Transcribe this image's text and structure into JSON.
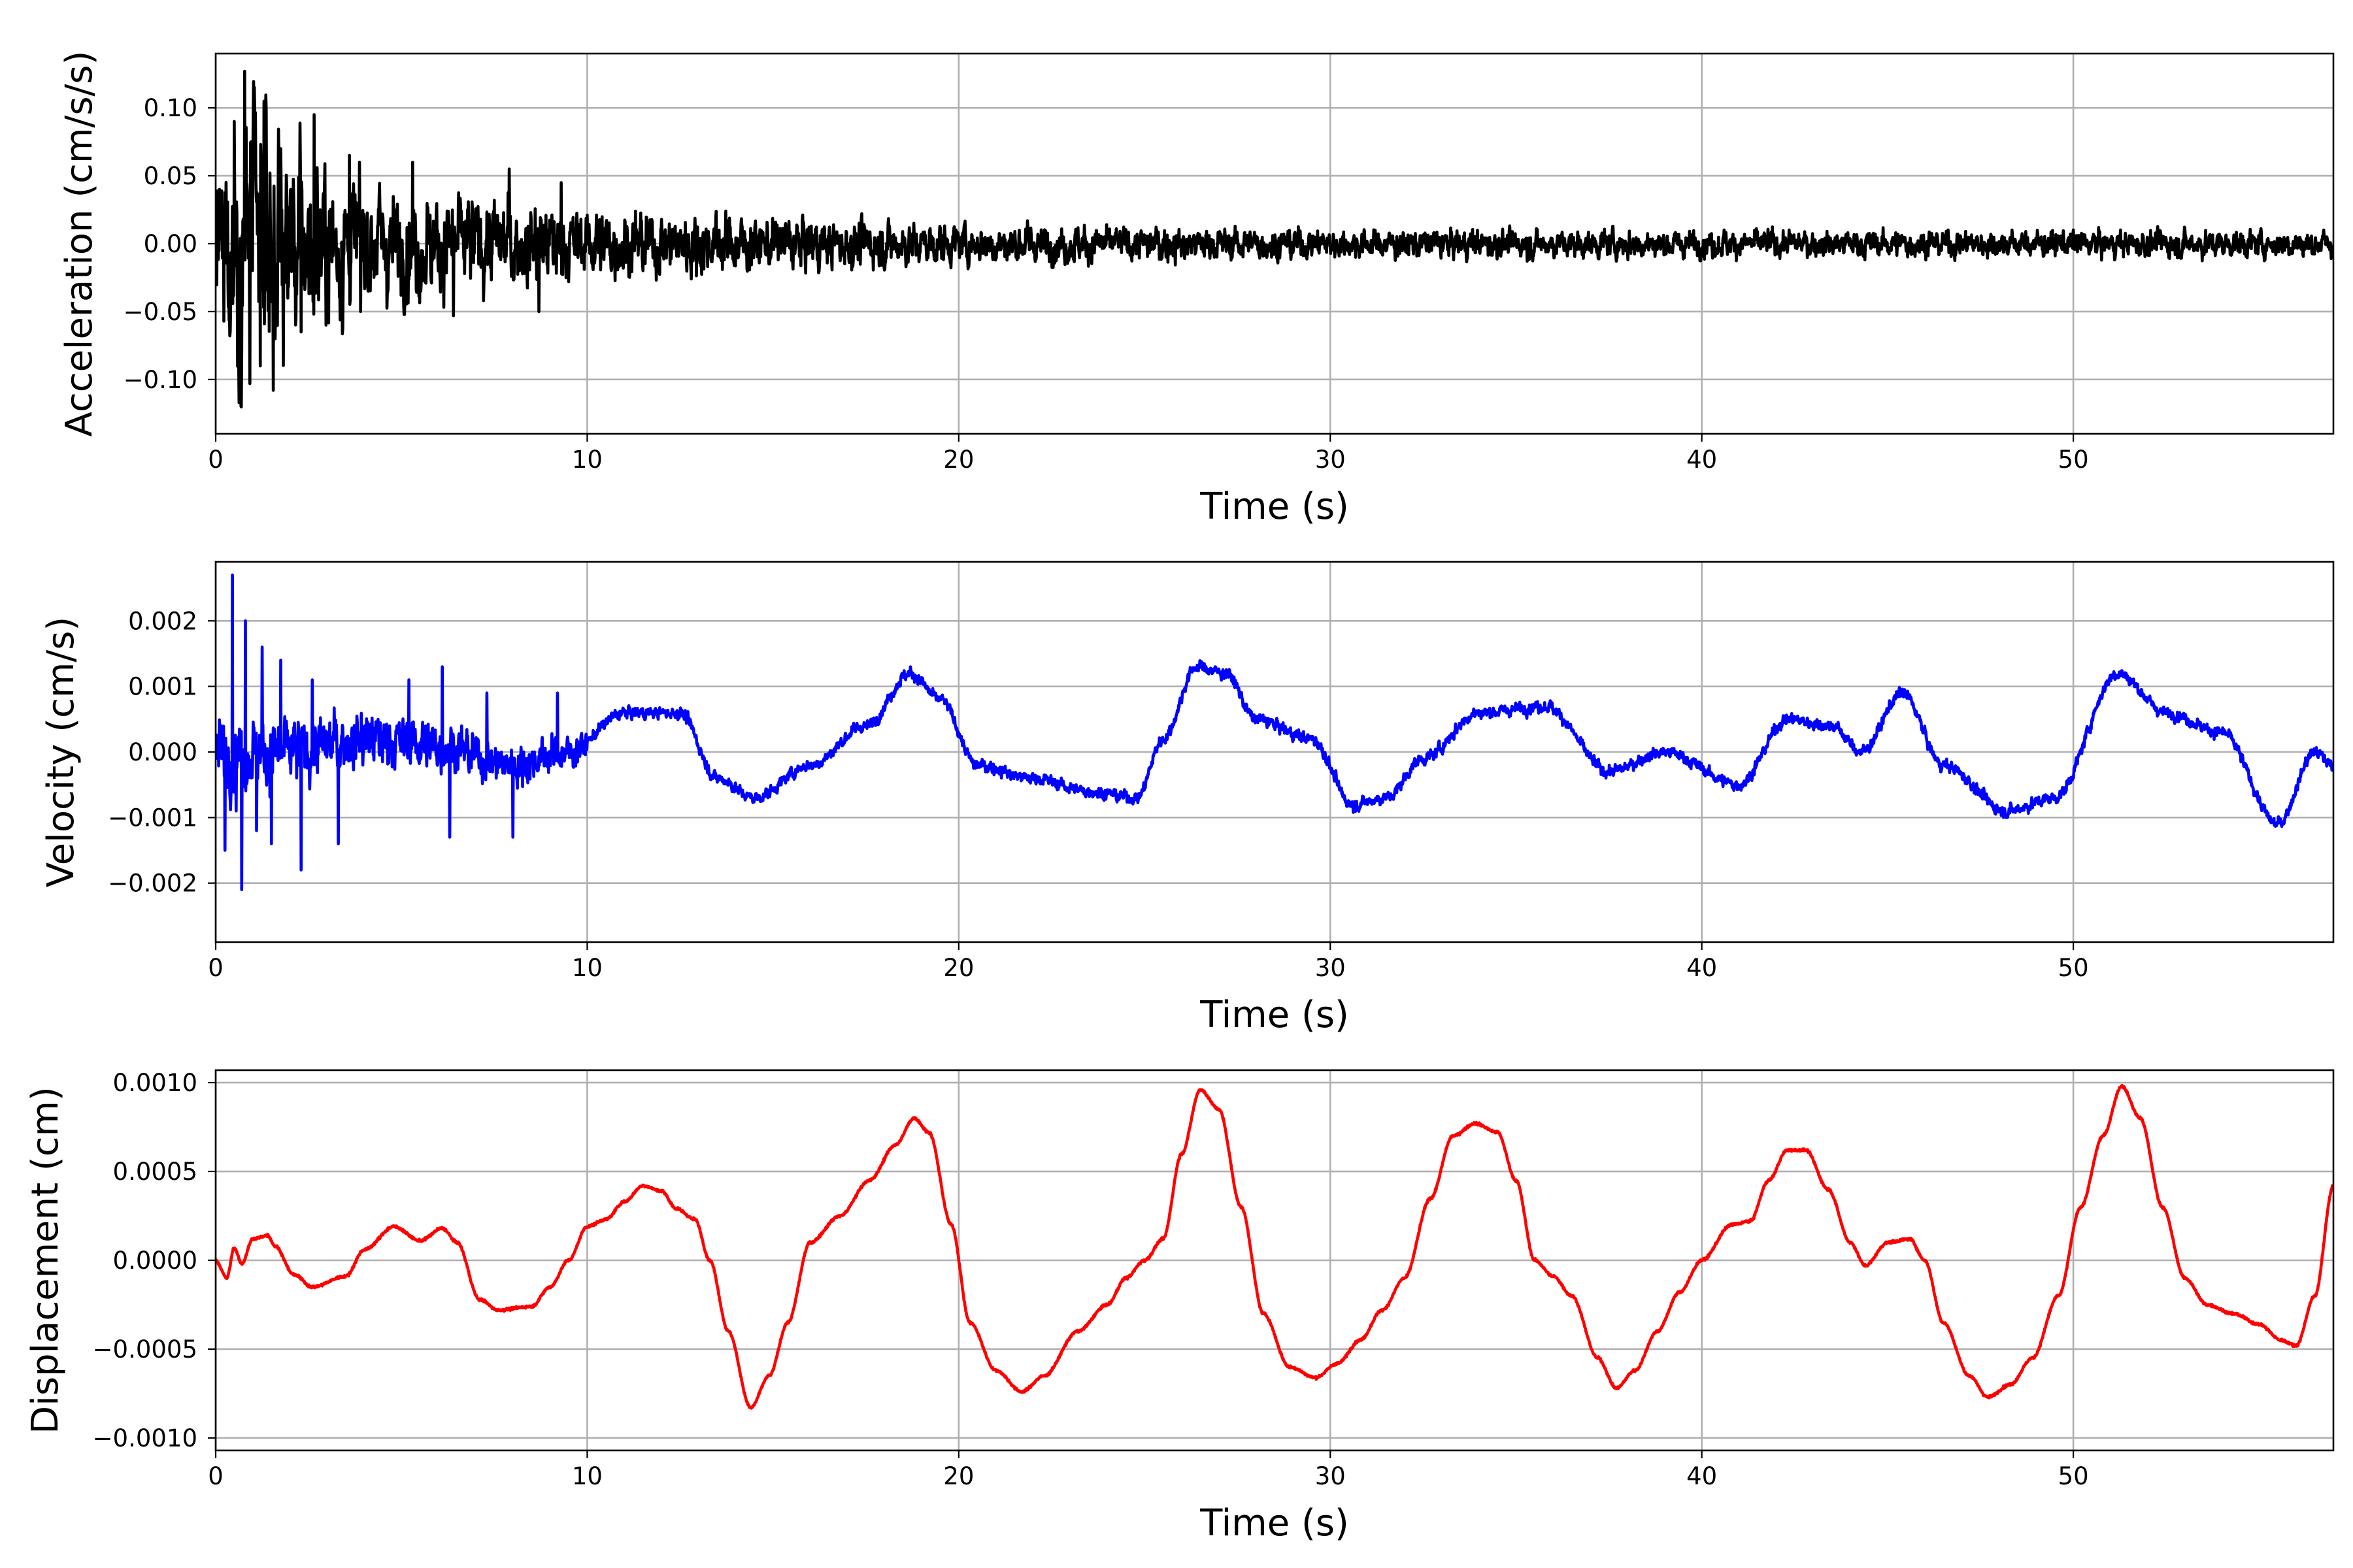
{
  "chart_data": [
    {
      "type": "line",
      "name": "acceleration-panel",
      "xlabel": "Time (s)",
      "ylabel": "Acceleration (cm/s/s)",
      "xlim": [
        0,
        57
      ],
      "ylim": [
        -0.14,
        0.14
      ],
      "xticks": [
        0,
        10,
        20,
        30,
        40,
        50
      ],
      "yticks": [
        -0.1,
        -0.05,
        0.0,
        0.05,
        0.1
      ],
      "ytick_labels": [
        "−0.10",
        "−0.05",
        "0.00",
        "0.05",
        "0.10"
      ],
      "grid": true,
      "color": "#000000",
      "series": [
        {
          "envelope": [
            {
              "t": 0,
              "amp": 0.06
            },
            {
              "t": 0.4,
              "amp": 0.1
            },
            {
              "t": 0.8,
              "amp": 0.12
            },
            {
              "t": 1.5,
              "amp": 0.1
            },
            {
              "t": 2.5,
              "amp": 0.08
            },
            {
              "t": 4,
              "amp": 0.055
            },
            {
              "t": 6,
              "amp": 0.045
            },
            {
              "t": 8,
              "amp": 0.04
            },
            {
              "t": 10,
              "amp": 0.03
            },
            {
              "t": 14,
              "amp": 0.025
            },
            {
              "t": 20,
              "amp": 0.018
            },
            {
              "t": 30,
              "amp": 0.013
            },
            {
              "t": 40,
              "amp": 0.012
            },
            {
              "t": 50,
              "amp": 0.012
            },
            {
              "t": 57,
              "amp": 0.012
            }
          ],
          "peaks": [
            {
              "t": 0.1,
              "v": 0.04
            },
            {
              "t": 0.22,
              "v": -0.057
            },
            {
              "t": 0.5,
              "v": 0.09
            },
            {
              "t": 0.62,
              "v": -0.09
            },
            {
              "t": 0.78,
              "v": 0.127
            },
            {
              "t": 0.92,
              "v": -0.103
            },
            {
              "t": 1.05,
              "v": 0.1
            },
            {
              "t": 1.2,
              "v": -0.09
            },
            {
              "t": 1.3,
              "v": 0.105
            },
            {
              "t": 1.55,
              "v": -0.108
            },
            {
              "t": 1.75,
              "v": 0.07
            },
            {
              "t": 2.3,
              "v": -0.065
            },
            {
              "t": 2.65,
              "v": 0.095
            },
            {
              "t": 3.6,
              "v": 0.065
            },
            {
              "t": 3.9,
              "v": -0.05
            },
            {
              "t": 5.3,
              "v": 0.06
            },
            {
              "t": 6.4,
              "v": -0.053
            },
            {
              "t": 7.9,
              "v": 0.055
            },
            {
              "t": 8.7,
              "v": -0.05
            },
            {
              "t": 9.3,
              "v": 0.045
            }
          ]
        }
      ]
    },
    {
      "type": "line",
      "name": "velocity-panel",
      "xlabel": "Time (s)",
      "ylabel": "Velocity (cm/s)",
      "xlim": [
        0,
        57
      ],
      "ylim": [
        -0.0029,
        0.0029
      ],
      "xticks": [
        0,
        10,
        20,
        30,
        40,
        50
      ],
      "yticks": [
        -0.002,
        -0.001,
        0.0,
        0.001,
        0.002
      ],
      "ytick_labels": [
        "−0.002",
        "−0.001",
        "0.000",
        "0.001",
        "0.002"
      ],
      "grid": true,
      "color": "#0000ff",
      "series": [
        {
          "trend": [
            {
              "t": 0,
              "v": 0.0
            },
            {
              "t": 2,
              "v": 0.0
            },
            {
              "t": 4,
              "v": 0.0002
            },
            {
              "t": 6,
              "v": 0.0001
            },
            {
              "t": 8,
              "v": -0.0002
            },
            {
              "t": 9.5,
              "v": 0.0
            },
            {
              "t": 11,
              "v": 0.0006
            },
            {
              "t": 12.5,
              "v": 0.0006
            },
            {
              "t": 13.5,
              "v": -0.0004
            },
            {
              "t": 14.5,
              "v": -0.0007
            },
            {
              "t": 16,
              "v": -0.0002
            },
            {
              "t": 17.5,
              "v": 0.0004
            },
            {
              "t": 18.7,
              "v": 0.0012
            },
            {
              "t": 19.5,
              "v": 0.0008
            },
            {
              "t": 20.5,
              "v": -0.0002
            },
            {
              "t": 22,
              "v": -0.0004
            },
            {
              "t": 23.5,
              "v": -0.0006
            },
            {
              "t": 24.8,
              "v": -0.0007
            },
            {
              "t": 25.5,
              "v": 0.0002
            },
            {
              "t": 26.4,
              "v": 0.0013
            },
            {
              "t": 27.2,
              "v": 0.0012
            },
            {
              "t": 28,
              "v": 0.0005
            },
            {
              "t": 29.5,
              "v": 0.0002
            },
            {
              "t": 30.6,
              "v": -0.0008
            },
            {
              "t": 31.5,
              "v": -0.0007
            },
            {
              "t": 32.5,
              "v": -0.0001
            },
            {
              "t": 34,
              "v": 0.0006
            },
            {
              "t": 35.8,
              "v": 0.0007
            },
            {
              "t": 37.5,
              "v": -0.0003
            },
            {
              "t": 39,
              "v": 0.0
            },
            {
              "t": 41,
              "v": -0.0005
            },
            {
              "t": 42.3,
              "v": 0.0005
            },
            {
              "t": 43.5,
              "v": 0.0004
            },
            {
              "t": 44.3,
              "v": 0.0
            },
            {
              "t": 45.4,
              "v": 0.0009
            },
            {
              "t": 46.5,
              "v": -0.0002
            },
            {
              "t": 48.2,
              "v": -0.0009
            },
            {
              "t": 49.5,
              "v": -0.0007
            },
            {
              "t": 51.2,
              "v": 0.0012
            },
            {
              "t": 52.5,
              "v": 0.0006
            },
            {
              "t": 54,
              "v": 0.0003
            },
            {
              "t": 55.5,
              "v": -0.0011
            },
            {
              "t": 56.5,
              "v": 0.0
            },
            {
              "t": 57,
              "v": -0.0002
            }
          ],
          "peaks": [
            {
              "t": 0.15,
              "v": 0.0004
            },
            {
              "t": 0.25,
              "v": -0.0015
            },
            {
              "t": 0.45,
              "v": 0.0027
            },
            {
              "t": 0.55,
              "v": -0.0009
            },
            {
              "t": 0.7,
              "v": -0.0021
            },
            {
              "t": 0.8,
              "v": 0.002
            },
            {
              "t": 1.1,
              "v": -0.0012
            },
            {
              "t": 1.25,
              "v": 0.0016
            },
            {
              "t": 1.5,
              "v": -0.0014
            },
            {
              "t": 1.75,
              "v": 0.0014
            },
            {
              "t": 2.3,
              "v": -0.0018
            },
            {
              "t": 2.6,
              "v": 0.0011
            },
            {
              "t": 3.3,
              "v": -0.0014
            },
            {
              "t": 5.2,
              "v": 0.0011
            },
            {
              "t": 6.1,
              "v": 0.0013
            },
            {
              "t": 6.3,
              "v": -0.0013
            },
            {
              "t": 7.3,
              "v": 0.0009
            },
            {
              "t": 8.0,
              "v": -0.0013
            },
            {
              "t": 9.2,
              "v": 0.0009
            }
          ]
        }
      ]
    },
    {
      "type": "line",
      "name": "displacement-panel",
      "xlabel": "Time (s)",
      "ylabel": "Displacement (cm)",
      "xlim": [
        0,
        57
      ],
      "ylim": [
        -0.00107,
        0.00107
      ],
      "xticks": [
        0,
        10,
        20,
        30,
        40,
        50
      ],
      "yticks": [
        -0.001,
        -0.0005,
        0.0,
        0.0005,
        0.001
      ],
      "ytick_labels": [
        "−0.0010",
        "−0.0005",
        "0.0000",
        "0.0005",
        "0.0010"
      ],
      "grid": true,
      "color": "#ff0000",
      "series": [
        {
          "points": [
            {
              "t": 0,
              "v": 0.0
            },
            {
              "t": 0.3,
              "v": -0.0001
            },
            {
              "t": 0.5,
              "v": 7e-05
            },
            {
              "t": 0.7,
              "v": -2e-05
            },
            {
              "t": 1.0,
              "v": 0.00012
            },
            {
              "t": 1.4,
              "v": 0.00014
            },
            {
              "t": 1.6,
              "v": 8e-05
            },
            {
              "t": 2.1,
              "v": -8e-05
            },
            {
              "t": 2.6,
              "v": -0.00015
            },
            {
              "t": 3.5,
              "v": -9e-05
            },
            {
              "t": 4.0,
              "v": 6e-05
            },
            {
              "t": 4.8,
              "v": 0.00019
            },
            {
              "t": 5.5,
              "v": 0.00011
            },
            {
              "t": 6.1,
              "v": 0.00018
            },
            {
              "t": 6.5,
              "v": 0.0001
            },
            {
              "t": 7.1,
              "v": -0.00022
            },
            {
              "t": 7.6,
              "v": -0.00028
            },
            {
              "t": 8.5,
              "v": -0.00026
            },
            {
              "t": 9.0,
              "v": -0.00015
            },
            {
              "t": 9.5,
              "v": 0.0
            },
            {
              "t": 10.0,
              "v": 0.00019
            },
            {
              "t": 10.5,
              "v": 0.00023
            },
            {
              "t": 11.0,
              "v": 0.00033
            },
            {
              "t": 11.5,
              "v": 0.00042
            },
            {
              "t": 12.0,
              "v": 0.00039
            },
            {
              "t": 12.4,
              "v": 0.00029
            },
            {
              "t": 12.9,
              "v": 0.00023
            },
            {
              "t": 13.3,
              "v": 0.0
            },
            {
              "t": 13.8,
              "v": -0.0004
            },
            {
              "t": 14.4,
              "v": -0.00083
            },
            {
              "t": 14.9,
              "v": -0.00065
            },
            {
              "t": 15.4,
              "v": -0.00035
            },
            {
              "t": 16.0,
              "v": 0.0001
            },
            {
              "t": 16.8,
              "v": 0.00025
            },
            {
              "t": 17.6,
              "v": 0.00045
            },
            {
              "t": 18.3,
              "v": 0.00065
            },
            {
              "t": 18.8,
              "v": 0.0008
            },
            {
              "t": 19.2,
              "v": 0.00072
            },
            {
              "t": 19.8,
              "v": 0.0002
            },
            {
              "t": 20.3,
              "v": -0.00035
            },
            {
              "t": 21.0,
              "v": -0.00062
            },
            {
              "t": 21.7,
              "v": -0.00074
            },
            {
              "t": 22.3,
              "v": -0.00065
            },
            {
              "t": 23.2,
              "v": -0.0004
            },
            {
              "t": 24.0,
              "v": -0.00025
            },
            {
              "t": 24.5,
              "v": -0.0001
            },
            {
              "t": 25.0,
              "v": 0.0
            },
            {
              "t": 25.5,
              "v": 0.00012
            },
            {
              "t": 26.0,
              "v": 0.0006
            },
            {
              "t": 26.5,
              "v": 0.00096
            },
            {
              "t": 27.0,
              "v": 0.00085
            },
            {
              "t": 27.6,
              "v": 0.0003
            },
            {
              "t": 28.2,
              "v": -0.0003
            },
            {
              "t": 28.9,
              "v": -0.0006
            },
            {
              "t": 29.6,
              "v": -0.00066
            },
            {
              "t": 30.2,
              "v": -0.00058
            },
            {
              "t": 30.8,
              "v": -0.00045
            },
            {
              "t": 31.4,
              "v": -0.00028
            },
            {
              "t": 32.0,
              "v": -0.0001
            },
            {
              "t": 32.7,
              "v": 0.00035
            },
            {
              "t": 33.3,
              "v": 0.0007
            },
            {
              "t": 33.9,
              "v": 0.00077
            },
            {
              "t": 34.5,
              "v": 0.00072
            },
            {
              "t": 35.0,
              "v": 0.00045
            },
            {
              "t": 35.5,
              "v": 0.0
            },
            {
              "t": 36.0,
              "v": -9e-05
            },
            {
              "t": 36.5,
              "v": -0.0002
            },
            {
              "t": 37.2,
              "v": -0.00055
            },
            {
              "t": 37.7,
              "v": -0.00072
            },
            {
              "t": 38.2,
              "v": -0.00062
            },
            {
              "t": 38.8,
              "v": -0.0004
            },
            {
              "t": 39.4,
              "v": -0.00018
            },
            {
              "t": 40.0,
              "v": 0.0
            },
            {
              "t": 40.8,
              "v": 0.0002
            },
            {
              "t": 41.3,
              "v": 0.00022
            },
            {
              "t": 41.8,
              "v": 0.00045
            },
            {
              "t": 42.3,
              "v": 0.00062
            },
            {
              "t": 42.8,
              "v": 0.00062
            },
            {
              "t": 43.4,
              "v": 0.0004
            },
            {
              "t": 44.0,
              "v": 0.0001
            },
            {
              "t": 44.4,
              "v": -3e-05
            },
            {
              "t": 45.0,
              "v": 0.0001
            },
            {
              "t": 45.6,
              "v": 0.00012
            },
            {
              "t": 46.0,
              "v": 0.0
            },
            {
              "t": 46.5,
              "v": -0.00035
            },
            {
              "t": 47.2,
              "v": -0.00065
            },
            {
              "t": 47.7,
              "v": -0.00077
            },
            {
              "t": 48.3,
              "v": -0.0007
            },
            {
              "t": 48.9,
              "v": -0.00055
            },
            {
              "t": 49.6,
              "v": -0.0002
            },
            {
              "t": 50.2,
              "v": 0.0003
            },
            {
              "t": 50.8,
              "v": 0.0007
            },
            {
              "t": 51.3,
              "v": 0.00098
            },
            {
              "t": 51.8,
              "v": 0.0008
            },
            {
              "t": 52.4,
              "v": 0.0003
            },
            {
              "t": 53.0,
              "v": -0.0001
            },
            {
              "t": 53.6,
              "v": -0.00025
            },
            {
              "t": 54.3,
              "v": -0.0003
            },
            {
              "t": 55.0,
              "v": -0.00036
            },
            {
              "t": 55.6,
              "v": -0.00045
            },
            {
              "t": 56.0,
              "v": -0.00048
            },
            {
              "t": 56.5,
              "v": -0.0002
            },
            {
              "t": 57.0,
              "v": 0.00042
            }
          ]
        }
      ]
    }
  ]
}
